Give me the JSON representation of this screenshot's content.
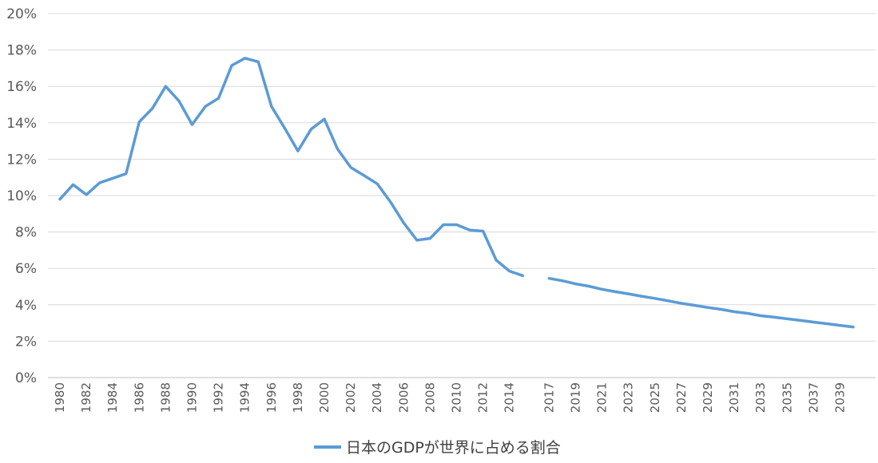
{
  "chart_data": {
    "type": "line",
    "title": "",
    "xlabel": "",
    "ylabel": "",
    "ylim": [
      0,
      20
    ],
    "y_ticks": [
      "0%",
      "2%",
      "4%",
      "6%",
      "8%",
      "10%",
      "12%",
      "14%",
      "16%",
      "18%",
      "20%"
    ],
    "x_ticks": [
      "1980",
      "1982",
      "1984",
      "1986",
      "1988",
      "1990",
      "1992",
      "1994",
      "1996",
      "1998",
      "2000",
      "2002",
      "2004",
      "2006",
      "2008",
      "2010",
      "2012",
      "2014",
      "2017",
      "2019",
      "2021",
      "2023",
      "2025",
      "2027",
      "2029",
      "2031",
      "2033",
      "2035",
      "2037",
      "2039"
    ],
    "grid": "horizontal",
    "legend_position": "bottom",
    "color": "#5B9BD5",
    "series": [
      {
        "name": "日本のGDPが世界に占める割合",
        "segments": [
          {
            "x": [
              1980,
              1981,
              1982,
              1983,
              1984,
              1985,
              1986,
              1987,
              1988,
              1989,
              1990,
              1991,
              1992,
              1993,
              1994,
              1995,
              1996,
              1997,
              1998,
              1999,
              2000,
              2001,
              2002,
              2003,
              2004,
              2005,
              2006,
              2007,
              2008,
              2009,
              2010,
              2011,
              2012,
              2013,
              2014,
              2015
            ],
            "values": [
              9.8,
              10.6,
              10.05,
              10.7,
              10.95,
              11.2,
              14.05,
              14.8,
              16.0,
              15.2,
              13.9,
              14.9,
              15.35,
              17.15,
              17.55,
              17.35,
              14.9,
              13.7,
              12.45,
              13.65,
              14.2,
              12.55,
              11.55,
              11.1,
              10.65,
              9.65,
              8.5,
              7.55,
              7.65,
              8.4,
              8.4,
              8.1,
              8.05,
              6.45,
              5.85,
              5.6
            ]
          },
          {
            "x": [
              2017,
              2018,
              2019,
              2020,
              2021,
              2022,
              2023,
              2024,
              2025,
              2026,
              2027,
              2028,
              2029,
              2030,
              2031,
              2032,
              2033,
              2034,
              2035,
              2036,
              2037,
              2038,
              2039,
              2040
            ],
            "values": [
              5.45,
              5.32,
              5.15,
              5.02,
              4.85,
              4.72,
              4.6,
              4.47,
              4.35,
              4.22,
              4.08,
              3.97,
              3.85,
              3.75,
              3.62,
              3.53,
              3.4,
              3.32,
              3.23,
              3.14,
              3.05,
              2.96,
              2.87,
              2.78
            ]
          }
        ]
      }
    ]
  }
}
